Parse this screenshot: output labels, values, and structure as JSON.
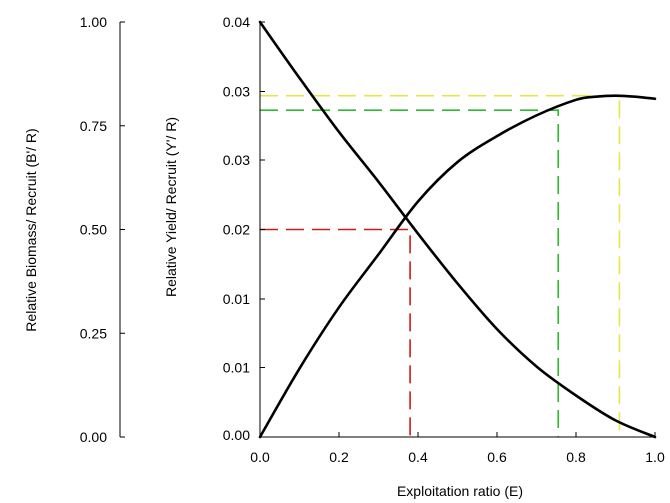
{
  "chart_data": {
    "type": "line",
    "xlabel": "Exploitation ratio (E)",
    "x_ticks": [
      "0.0",
      "0.2",
      "0.4",
      "0.6",
      "0.8",
      "1.0"
    ],
    "xlim": [
      0,
      1
    ],
    "left_axis": {
      "label": "Relative Biomass/ Recruit (B'/ R)",
      "ticks": [
        "1.00",
        "0.75",
        "0.50",
        "0.25",
        "0.00"
      ],
      "tick_values": [
        1.0,
        0.75,
        0.5,
        0.25,
        0.0
      ],
      "highlight_tick": "0.50",
      "highlight_color": "#e0202a",
      "ylim": [
        0,
        1
      ]
    },
    "right_axis": {
      "label": "Relative Yield/ Recruit (Y'/ R)",
      "ticks": [
        "0.04",
        "0.03",
        "0.03",
        "0.02",
        "0.01",
        "0.01",
        "0.00"
      ],
      "tick_values": [
        0.04,
        0.0333,
        0.0267,
        0.02,
        0.0133,
        0.0067,
        0.0
      ],
      "ylim": [
        0,
        0.04
      ]
    },
    "series": [
      {
        "axis": "left",
        "x": [
          0,
          0.1,
          0.2,
          0.3,
          0.4,
          0.5,
          0.6,
          0.7,
          0.8,
          0.9,
          1.0
        ],
        "values": [
          1.0,
          0.865,
          0.735,
          0.615,
          0.49,
          0.37,
          0.26,
          0.17,
          0.1,
          0.04,
          0.0
        ]
      },
      {
        "axis": "right",
        "x": [
          0,
          0.1,
          0.2,
          0.3,
          0.4,
          0.5,
          0.6,
          0.7,
          0.8,
          0.85,
          0.9,
          0.95,
          1.0
        ],
        "values": [
          0.0,
          0.0066,
          0.0125,
          0.0176,
          0.0227,
          0.0265,
          0.029,
          0.031,
          0.0325,
          0.0328,
          0.0329,
          0.0328,
          0.0326
        ]
      }
    ],
    "reference_lines": [
      {
        "color": "#cc1b1b",
        "x": 0.38,
        "y": 0.02
      },
      {
        "color": "#2dbb2d",
        "x": 0.755,
        "y": 0.0315
      },
      {
        "color": "#e6e64a",
        "x": 0.91,
        "y": 0.0329
      }
    ],
    "grid": false
  }
}
